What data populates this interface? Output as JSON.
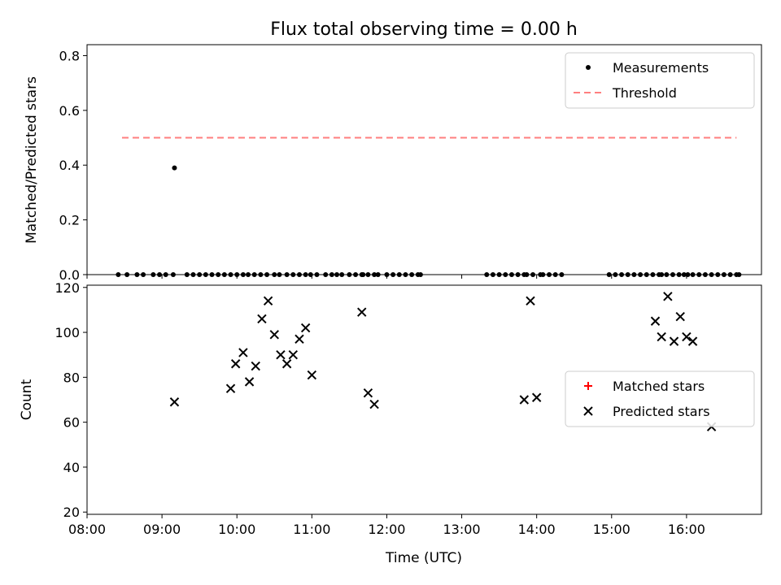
{
  "chart_data": [
    {
      "type": "scatter",
      "title": "Flux total observing time = 0.00 h",
      "ylabel": "Matched/Predicted stars",
      "xlabel": "",
      "ylim": [
        0,
        0.84
      ],
      "yticks": [
        0.0,
        0.2,
        0.4,
        0.6,
        0.8
      ],
      "ytick_labels": [
        "0.0",
        "0.2",
        "0.4",
        "0.6",
        "0.8"
      ],
      "legend_position": "top-right",
      "series": [
        {
          "name": "Measurements",
          "marker": "dot",
          "color": "#000000",
          "x": [
            "08:25",
            "08:32",
            "08:40",
            "08:45",
            "08:53",
            "08:58",
            "09:03",
            "09:09",
            "09:10",
            "09:20",
            "09:25",
            "09:30",
            "09:35",
            "09:40",
            "09:45",
            "09:50",
            "09:55",
            "10:00",
            "10:05",
            "10:09",
            "10:14",
            "10:19",
            "10:24",
            "10:30",
            "10:34",
            "10:40",
            "10:45",
            "10:50",
            "10:55",
            "10:59",
            "11:04",
            "11:11",
            "11:16",
            "11:20",
            "11:24",
            "11:30",
            "11:35",
            "11:40",
            "11:41",
            "11:45",
            "11:50",
            "11:53",
            "12:00",
            "12:05",
            "12:10",
            "12:15",
            "12:20",
            "12:25",
            "12:27",
            "13:20",
            "13:25",
            "13:30",
            "13:35",
            "13:40",
            "13:45",
            "13:50",
            "13:52",
            "13:57",
            "14:03",
            "14:05",
            "14:10",
            "14:15",
            "14:20",
            "14:58",
            "15:03",
            "15:08",
            "15:13",
            "15:18",
            "15:23",
            "15:28",
            "15:33",
            "15:38",
            "15:40",
            "15:44",
            "15:49",
            "15:54",
            "15:58",
            "16:01",
            "16:05",
            "16:10",
            "16:15",
            "16:20",
            "16:25",
            "16:30",
            "16:35",
            "16:40",
            "16:42"
          ],
          "y": [
            0.0,
            0.0,
            0.0,
            0.0,
            0.0,
            0.0,
            0.0,
            0.0,
            0.39,
            0.0,
            0.0,
            0.0,
            0.0,
            0.0,
            0.0,
            0.0,
            0.0,
            0.0,
            0.0,
            0.0,
            0.0,
            0.0,
            0.0,
            0.0,
            0.0,
            0.0,
            0.0,
            0.0,
            0.0,
            0.0,
            0.0,
            0.0,
            0.0,
            0.0,
            0.0,
            0.0,
            0.0,
            0.0,
            0.0,
            0.0,
            0.0,
            0.0,
            0.0,
            0.0,
            0.0,
            0.0,
            0.0,
            0.0,
            0.0,
            0.0,
            0.0,
            0.0,
            0.0,
            0.0,
            0.0,
            0.0,
            0.0,
            0.0,
            0.0,
            0.0,
            0.0,
            0.0,
            0.0,
            0.0,
            0.0,
            0.0,
            0.0,
            0.0,
            0.0,
            0.0,
            0.0,
            0.0,
            0.0,
            0.0,
            0.0,
            0.0,
            0.0,
            0.0,
            0.0,
            0.0,
            0.0,
            0.0,
            0.0,
            0.0,
            0.0,
            0.0,
            0.0
          ]
        },
        {
          "name": "Threshold",
          "marker": "dashed-line",
          "color": "#ff7f7f",
          "x": [
            "08:28",
            "16:40"
          ],
          "y": [
            0.5,
            0.5
          ]
        }
      ]
    },
    {
      "type": "scatter",
      "title": "",
      "xlabel": "Time (UTC)",
      "ylabel": "Count",
      "ylim": [
        19,
        121
      ],
      "yticks": [
        20,
        40,
        60,
        80,
        100,
        120
      ],
      "ytick_labels": [
        "20",
        "40",
        "60",
        "80",
        "100",
        "120"
      ],
      "xlim": [
        "08:00",
        "17:00"
      ],
      "xticks": [
        "08:00",
        "09:00",
        "10:00",
        "11:00",
        "12:00",
        "13:00",
        "14:00",
        "15:00",
        "16:00"
      ],
      "legend_position": "center-right",
      "series": [
        {
          "name": "Matched stars",
          "marker": "plus",
          "color": "#ff0000",
          "x": [],
          "y": []
        },
        {
          "name": "Predicted stars",
          "marker": "x",
          "color": "#000000",
          "x": [
            "09:10",
            "09:55",
            "09:59",
            "10:05",
            "10:10",
            "10:15",
            "10:20",
            "10:25",
            "10:30",
            "10:35",
            "10:40",
            "10:45",
            "10:50",
            "10:55",
            "11:00",
            "11:40",
            "11:45",
            "11:50",
            "13:50",
            "13:55",
            "14:00",
            "15:35",
            "15:40",
            "15:45",
            "15:50",
            "15:55",
            "16:00",
            "16:05",
            "16:20"
          ],
          "y": [
            69,
            75,
            86,
            91,
            78,
            85,
            106,
            114,
            99,
            90,
            86,
            90,
            97,
            102,
            81,
            109,
            73,
            68,
            70,
            114,
            71,
            105,
            98,
            116,
            96,
            107,
            98,
            96,
            58
          ]
        }
      ]
    }
  ]
}
